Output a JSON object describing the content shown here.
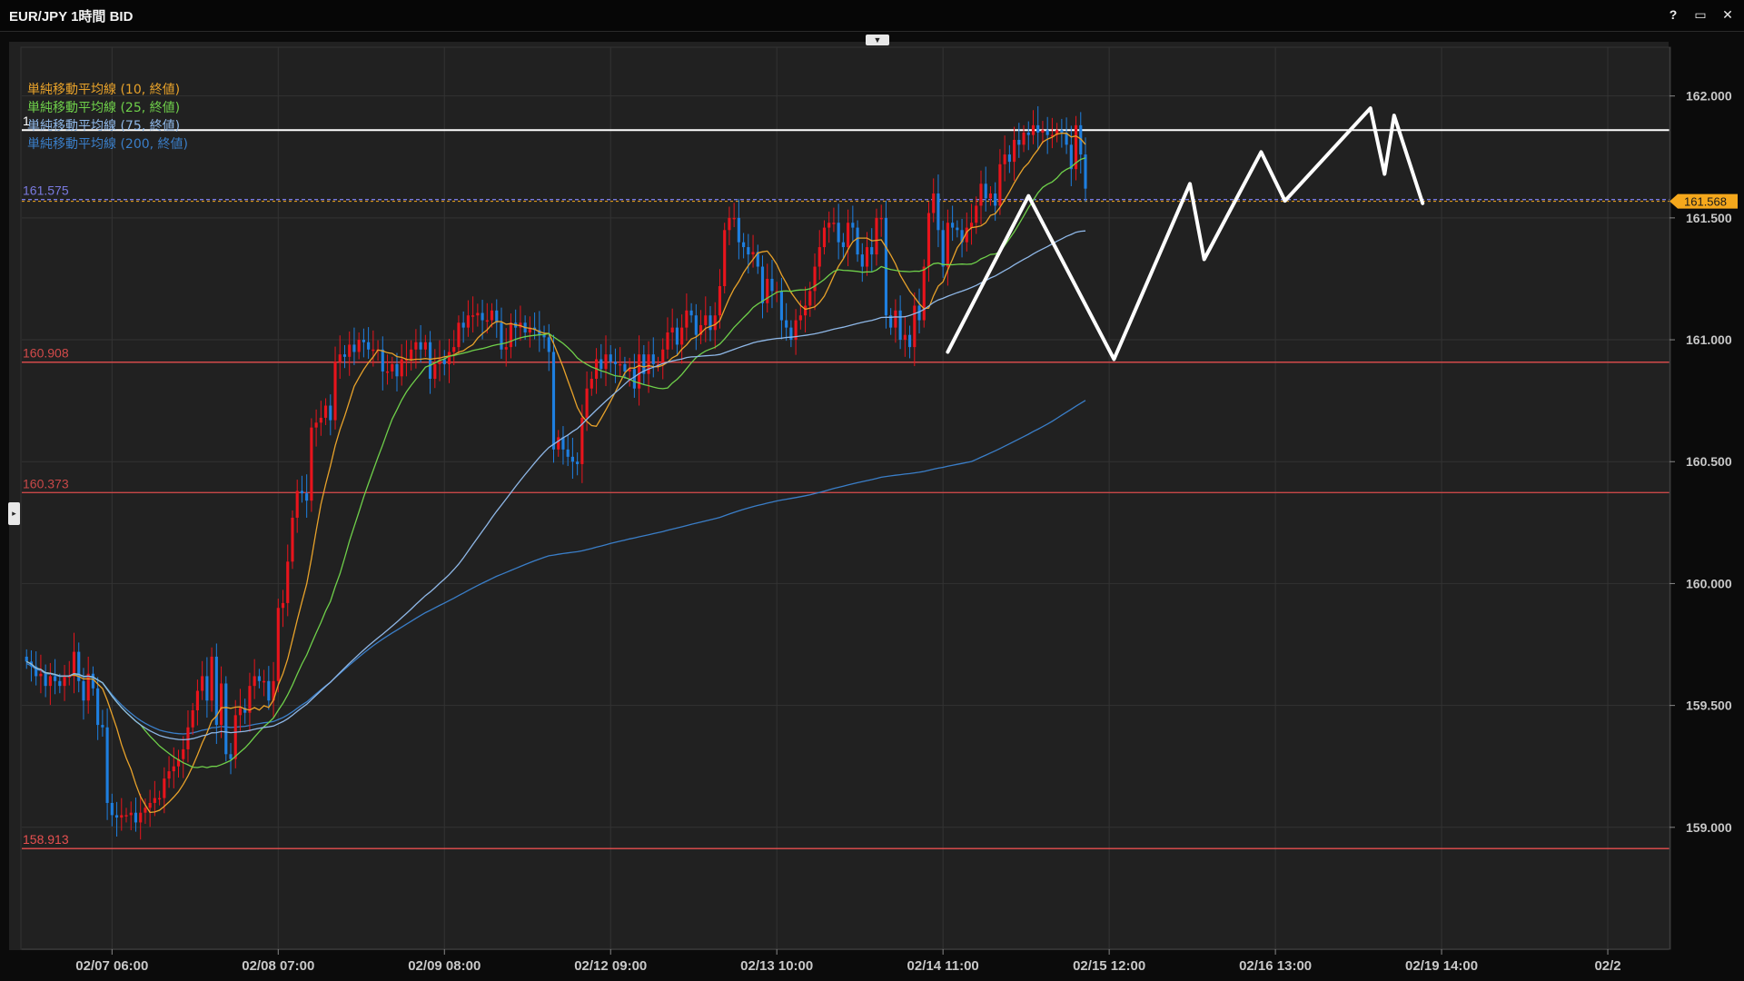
{
  "window": {
    "title": "EUR/JPY 1時間 BID",
    "controls": [
      "?",
      "▭",
      "✕"
    ]
  },
  "chart_data": {
    "type": "candlestick",
    "title": "EUR/JPY 1時間 BID",
    "ylim": [
      158.5,
      162.2
    ],
    "y_ticks": [
      {
        "value": 162.0,
        "label": "162.000"
      },
      {
        "value": 161.5,
        "label": "161.500"
      },
      {
        "value": 161.0,
        "label": "161.000"
      },
      {
        "value": 160.5,
        "label": "160.500"
      },
      {
        "value": 160.0,
        "label": "160.000"
      },
      {
        "value": 159.5,
        "label": "159.500"
      },
      {
        "value": 159.0,
        "label": "159.000"
      }
    ],
    "x_ticks": [
      {
        "index": 18,
        "label": "02/07 06:00"
      },
      {
        "index": 53,
        "label": "02/08 07:00"
      },
      {
        "index": 88,
        "label": "02/09 08:00"
      },
      {
        "index": 123,
        "label": "02/12 09:00"
      },
      {
        "index": 158,
        "label": "02/13 10:00"
      },
      {
        "index": 193,
        "label": "02/14 11:00"
      },
      {
        "index": 228,
        "label": "02/15 12:00"
      },
      {
        "index": 263,
        "label": "02/16 13:00"
      },
      {
        "index": 298,
        "label": "02/19 14:00"
      },
      {
        "index": 333,
        "label": "02/2"
      }
    ],
    "x_range": [
      -1,
      346
    ],
    "grid": true,
    "colors": {
      "up": "#e8141c",
      "down": "#1e7fe0",
      "background": "#212121",
      "grid": "#333333",
      "axis_text": "#c8c8c8"
    },
    "current_price": {
      "value": 161.568,
      "label": "161.568",
      "color": "#f5a81c"
    },
    "horizontal_lines": [
      {
        "value": 161.575,
        "label": "161.575",
        "color": "#7a7ae0",
        "style": "dashed"
      },
      {
        "value": 161.86,
        "label": "1",
        "color": "#ffffff",
        "style": "solid"
      },
      {
        "value": 160.908,
        "label": "160.908",
        "color": "#d24a4a",
        "style": "solid"
      },
      {
        "value": 160.373,
        "label": "160.373",
        "color": "#c84848",
        "style": "solid"
      },
      {
        "value": 158.913,
        "label": "158.913",
        "color": "#e85050",
        "style": "solid"
      }
    ],
    "legend": [
      {
        "label": "単純移動平均線 (10, 終値)",
        "color": "#e8a22a"
      },
      {
        "label": "単純移動平均線 (25, 終値)",
        "color": "#6fd04a"
      },
      {
        "label": "単純移動平均線 (75, 終値)",
        "color": "#8fb8e8"
      },
      {
        "label": "単純移動平均線 (200, 終値)",
        "color": "#3a7ec8"
      }
    ],
    "candle_closes": [
      159.68,
      159.66,
      159.62,
      159.63,
      159.58,
      159.62,
      159.6,
      159.58,
      159.62,
      159.62,
      159.72,
      159.6,
      159.52,
      159.63,
      159.57,
      159.42,
      159.41,
      159.1,
      159.05,
      159.04,
      159.05,
      159.05,
      159.06,
      159.02,
      159.06,
      159.08,
      159.1,
      159.12,
      159.12,
      159.2,
      159.23,
      159.25,
      159.28,
      159.32,
      159.41,
      159.48,
      159.56,
      159.62,
      159.52,
      159.7,
      159.42,
      159.59,
      159.3,
      159.28,
      159.46,
      159.49,
      159.47,
      159.58,
      159.62,
      159.6,
      159.6,
      159.52,
      159.6,
      159.9,
      159.92,
      160.09,
      160.27,
      160.38,
      160.37,
      160.34,
      160.64,
      160.66,
      160.68,
      160.73,
      160.67,
      160.91,
      160.94,
      160.93,
      160.98,
      160.95,
      161.0,
      160.99,
      160.96,
      160.96,
      160.96,
      160.87,
      160.87,
      160.9,
      160.85,
      160.92,
      160.92,
      160.96,
      160.99,
      160.96,
      160.99,
      160.84,
      160.9,
      160.92,
      160.9,
      160.95,
      160.97,
      161.07,
      161.05,
      161.1,
      161.1,
      161.11,
      161.08,
      161.08,
      161.12,
      161.07,
      160.96,
      160.97,
      161.07,
      161.05,
      161.07,
      161.03,
      161.05,
      161.04,
      161.02,
      161.01,
      160.95,
      160.55,
      160.6,
      160.55,
      160.52,
      160.5,
      160.49,
      160.68,
      160.8,
      160.84,
      160.92,
      160.88,
      160.94,
      160.91,
      160.9,
      160.9,
      160.87,
      160.88,
      160.8,
      160.94,
      160.86,
      160.94,
      160.9,
      160.9,
      160.96,
      161.03,
      161.05,
      160.98,
      161.05,
      161.12,
      161.1,
      161.02,
      161.06,
      161.1,
      161.04,
      161.1,
      161.22,
      161.45,
      161.5,
      161.5,
      161.4,
      161.38,
      161.35,
      161.36,
      161.3,
      161.15,
      161.25,
      161.2,
      161.2,
      161.08,
      161.05,
      161.0,
      161.08,
      161.1,
      161.14,
      161.2,
      161.3,
      161.38,
      161.46,
      161.48,
      161.48,
      161.4,
      161.38,
      161.48,
      161.46,
      161.35,
      161.3,
      161.38,
      161.35,
      161.5,
      161.5,
      161.1,
      161.05,
      161.12,
      161.0,
      161.02,
      160.97,
      161.14,
      161.08,
      161.3,
      161.52,
      161.6,
      161.45,
      161.3,
      161.48,
      161.46,
      161.45,
      161.4,
      161.46,
      161.48,
      161.55,
      161.64,
      161.58,
      161.6,
      161.55,
      161.72,
      161.76,
      161.73,
      161.82,
      161.8,
      161.85,
      161.84,
      161.88,
      161.85,
      161.86,
      161.84,
      161.84,
      161.86,
      161.85,
      161.8,
      161.7,
      161.88,
      161.76,
      161.62
    ]
  }
}
